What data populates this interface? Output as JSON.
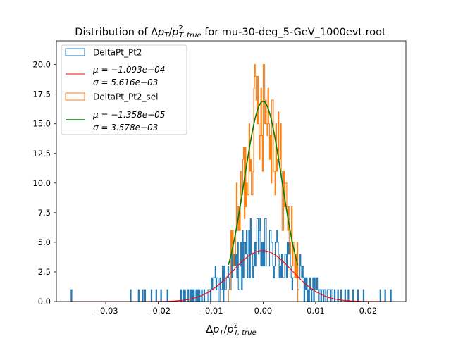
{
  "chart_data": {
    "type": "histogram",
    "title": {
      "prefix": "Distribution of ",
      "delta": "Δ",
      "p": "p",
      "sub_T": "T",
      "slash": "/",
      "sup_2": "2",
      "sub_Ttrue": "T, true",
      "suffix": " for mu-30-deg_5-GeV_1000evt.root"
    },
    "xlabel": {
      "delta": "Δ",
      "p": "p",
      "sub_T": "T",
      "slash": "/",
      "sup_2": "2",
      "sub_Ttrue": "T, true"
    },
    "xlim": [
      -0.0394,
      0.0272
    ],
    "ylim": [
      0,
      22.0
    ],
    "xticks": [
      -0.03,
      -0.02,
      -0.01,
      0.0,
      0.01,
      0.02
    ],
    "xtick_labels": [
      "−0.03",
      "−0.02",
      "−0.01",
      "0.00",
      "0.01",
      "0.02"
    ],
    "yticks": [
      0,
      2.5,
      5.0,
      7.5,
      10.0,
      12.5,
      15.0,
      17.5,
      20.0
    ],
    "ytick_labels": [
      "0.0",
      "2.5",
      "5.0",
      "7.5",
      "10.0",
      "12.5",
      "15.0",
      "17.5",
      "20.0"
    ],
    "legend_position": "upper-left",
    "series": [
      {
        "name": "DeltaPt_Pt2",
        "kind": "step-histogram",
        "color": "#1f77b4",
        "bin_range": [
          -0.0366,
          0.0244
        ],
        "n_bins": 400,
        "fit_mu": -0.0001093,
        "fit_sigma": 0.005616,
        "fit_amplitude": 4.3,
        "outlier_bins": [
          [
            -0.0366,
            1
          ],
          [
            -0.0253,
            1
          ],
          [
            -0.0237,
            1
          ],
          [
            -0.023,
            1
          ],
          [
            -0.0225,
            1
          ],
          [
            -0.0213,
            1
          ],
          [
            -0.0203,
            1
          ],
          [
            -0.0194,
            1
          ],
          [
            -0.0182,
            1
          ],
          [
            -0.0156,
            1
          ],
          [
            -0.0152,
            1
          ],
          [
            -0.0148,
            1
          ],
          [
            -0.0142,
            1
          ],
          [
            -0.0138,
            1
          ],
          [
            -0.0132,
            1
          ],
          [
            -0.0127,
            1
          ],
          [
            -0.0122,
            1
          ],
          [
            -0.0117,
            1
          ],
          [
            0.0118,
            1
          ],
          [
            0.0124,
            1
          ],
          [
            0.0131,
            1
          ],
          [
            0.0137,
            1
          ],
          [
            0.0143,
            1
          ],
          [
            0.0149,
            1
          ],
          [
            0.0156,
            1
          ],
          [
            0.0162,
            1
          ],
          [
            0.0171,
            1
          ],
          [
            0.0181,
            1
          ],
          [
            0.0192,
            1
          ],
          [
            0.0224,
            1
          ],
          [
            0.0232,
            1
          ],
          [
            0.0243,
            1
          ]
        ]
      },
      {
        "name": "μ = −1.093e−04 / σ = 5.616e−03",
        "kind": "gaussian-fit",
        "color": "#ff0000",
        "mu": -0.0001093,
        "sigma": 0.005616,
        "amplitude": 4.3,
        "x_range": [
          -0.0366,
          0.0244
        ]
      },
      {
        "name": "DeltaPt_Pt2_sel",
        "kind": "step-histogram",
        "color": "#ff7f0e",
        "bin_range": [
          -0.0066,
          0.0066
        ],
        "n_bins": 88,
        "fit_mu": -1.358e-05,
        "fit_sigma": 0.003578,
        "fit_amplitude": 16.9,
        "peak_count": 20
      },
      {
        "name": "μ = −1.358e−05 / σ = 3.578e−03",
        "kind": "gaussian-fit",
        "color": "#008000",
        "mu": -1.358e-05,
        "sigma": 0.003578,
        "amplitude": 16.9,
        "x_range": [
          -0.0066,
          0.0066
        ]
      }
    ],
    "legend": [
      {
        "kind": "patch",
        "color": "#1f77b4",
        "label": "DeltaPt_Pt2"
      },
      {
        "kind": "line",
        "color": "#ff0000",
        "line1": "μ = −1.093e−04",
        "line2": "σ = 5.616e−03"
      },
      {
        "kind": "patch",
        "color": "#ff7f0e",
        "label": "DeltaPt_Pt2_sel"
      },
      {
        "kind": "line",
        "color": "#008000",
        "line1": "μ = −1.358e−05",
        "line2": "σ = 3.578e−03"
      }
    ]
  }
}
